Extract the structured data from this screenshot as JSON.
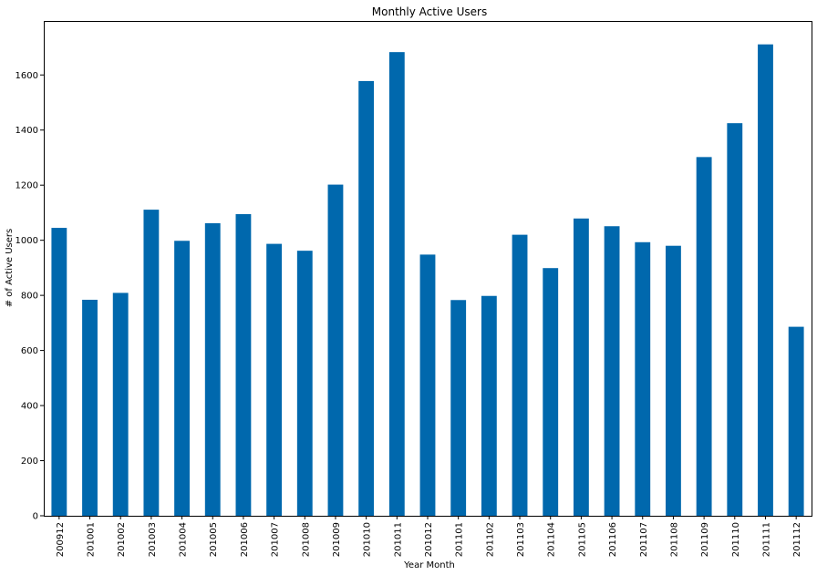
{
  "chart_data": {
    "type": "bar",
    "title": "Monthly Active Users",
    "xlabel": "Year Month",
    "ylabel": "# of Active Users",
    "categories": [
      "200912",
      "201001",
      "201002",
      "201003",
      "201004",
      "201005",
      "201006",
      "201007",
      "201008",
      "201009",
      "201010",
      "201011",
      "201012",
      "201101",
      "201102",
      "201103",
      "201104",
      "201105",
      "201106",
      "201107",
      "201108",
      "201109",
      "201110",
      "201111",
      "201112"
    ],
    "values": [
      1045,
      784,
      809,
      1111,
      998,
      1062,
      1095,
      987,
      962,
      1202,
      1578,
      1683,
      948,
      783,
      798,
      1020,
      899,
      1079,
      1051,
      993,
      980,
      1302,
      1425,
      1711,
      686
    ],
    "ylim": [
      0,
      1796
    ],
    "yticks": [
      0,
      200,
      400,
      600,
      800,
      1000,
      1200,
      1400,
      1600
    ],
    "grid": false,
    "legend": "none",
    "bar_color": "#0068ad"
  }
}
